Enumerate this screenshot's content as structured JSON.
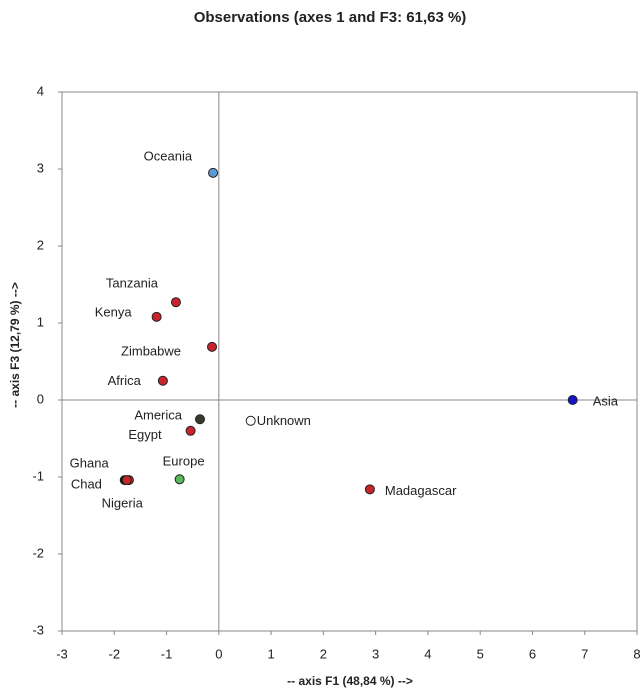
{
  "chart_data": {
    "type": "scatter",
    "title": "Observations (axes 1 and F3: 61,63 %)",
    "x_label": "-- axis F1 (48,84 %) -->",
    "y_label": "-- axis F3 (12,79 %) -->",
    "xlim": [
      -3,
      8
    ],
    "xticks": [
      -3,
      -2,
      -1,
      0,
      1,
      2,
      3,
      4,
      5,
      6,
      7,
      8
    ],
    "ylim": [
      -3,
      4
    ],
    "yticks": [
      -3,
      -2,
      -1,
      0,
      1,
      2,
      3,
      4
    ],
    "points": [
      {
        "name": "Oceania",
        "x": -0.11,
        "y": 2.95,
        "color": "#5b9bd5"
      },
      {
        "name": "Tanzania",
        "x": -0.82,
        "y": 1.27,
        "color": "#c8242b"
      },
      {
        "name": "Kenya",
        "x": -1.19,
        "y": 1.08,
        "color": "#c8242b"
      },
      {
        "name": "Zimbabwe",
        "x": -0.13,
        "y": 0.69,
        "color": "#c8242b"
      },
      {
        "name": "Africa",
        "x": -1.07,
        "y": 0.25,
        "color": "#c8242b"
      },
      {
        "name": "America",
        "x": -0.36,
        "y": -0.25,
        "color": "#3a3a2a"
      },
      {
        "name": "Egypt",
        "x": -0.54,
        "y": -0.4,
        "color": "#c8242b"
      },
      {
        "name": "Unknown",
        "x": 0.61,
        "y": -0.27,
        "color": "#ffffff"
      },
      {
        "name": "Asia",
        "x": 6.77,
        "y": 0.0,
        "color": "#1414c8"
      },
      {
        "name": "Europe",
        "x": -0.75,
        "y": -1.03,
        "color": "#5cb85c"
      },
      {
        "name": "Ghana",
        "x": -1.8,
        "y": -1.04,
        "color": "#111111"
      },
      {
        "name": "Chad",
        "x": -1.72,
        "y": -1.04,
        "color": "#c8242b"
      },
      {
        "name": "Nigeria",
        "x": -1.76,
        "y": -1.04,
        "color": "#c8242b"
      },
      {
        "name": "Madagascar",
        "x": 2.89,
        "y": -1.16,
        "color": "#c8242b"
      }
    ]
  }
}
